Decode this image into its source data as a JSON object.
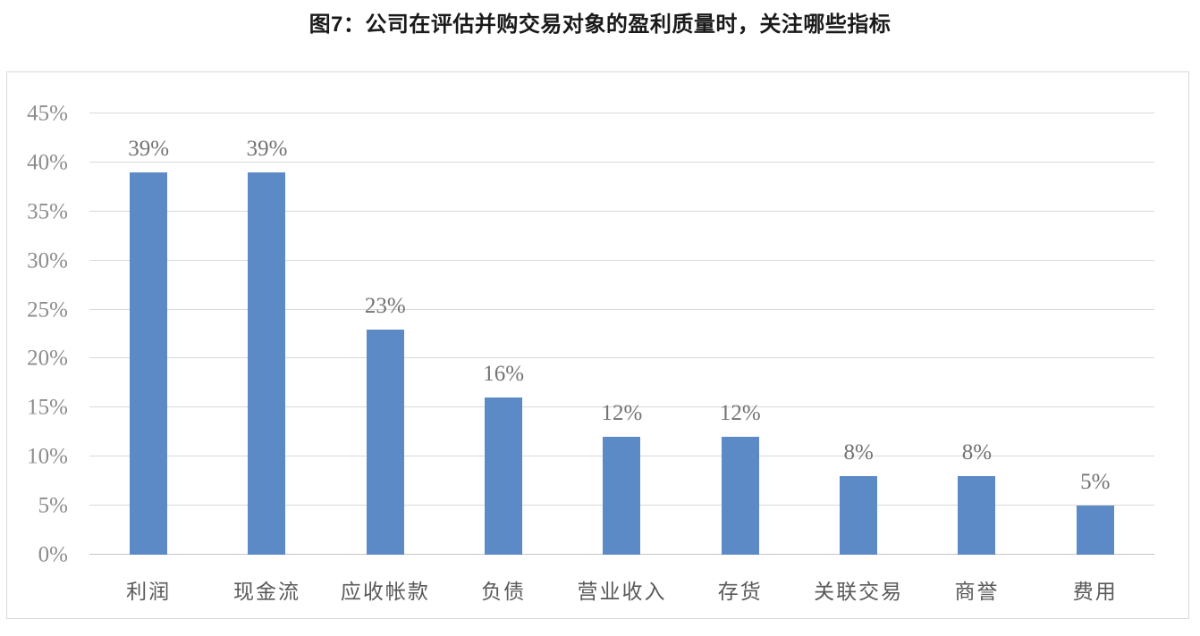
{
  "page": {
    "title": "图7：公司在评估并购交易对象的盈利质量时，关注哪些指标"
  },
  "colors": {
    "bar": "#5B8AC6",
    "gridline": "#D9D9D9",
    "baseline": "#C6C6C6",
    "chart_border": "#D9D9D9",
    "tick_label": "#8C8C8C",
    "value_label": "#737373",
    "category_label": "#595959",
    "title": "#1A1A1A"
  },
  "chart_data": {
    "type": "bar",
    "title": "图7：公司在评估并购交易对象的盈利质量时，关注哪些指标",
    "categories": [
      "利润",
      "现金流",
      "应收帐款",
      "负债",
      "营业收入",
      "存货",
      "关联交易",
      "商誉",
      "费用"
    ],
    "values": [
      39,
      39,
      23,
      16,
      12,
      12,
      8,
      8,
      5
    ],
    "value_labels": [
      "39%",
      "39%",
      "23%",
      "16%",
      "12%",
      "12%",
      "8%",
      "8%",
      "5%"
    ],
    "unit": "%",
    "xlabel": "",
    "ylabel": "",
    "ylim": [
      0,
      45
    ],
    "yticks": [
      {
        "value": 0,
        "label": "0%"
      },
      {
        "value": 5,
        "label": "5%"
      },
      {
        "value": 10,
        "label": "10%"
      },
      {
        "value": 15,
        "label": "15%"
      },
      {
        "value": 20,
        "label": "20%"
      },
      {
        "value": 25,
        "label": "25%"
      },
      {
        "value": 30,
        "label": "30%"
      },
      {
        "value": 35,
        "label": "35%"
      },
      {
        "value": 40,
        "label": "40%"
      },
      {
        "value": 45,
        "label": "45%"
      }
    ],
    "grid": true,
    "legend_position": "none"
  }
}
